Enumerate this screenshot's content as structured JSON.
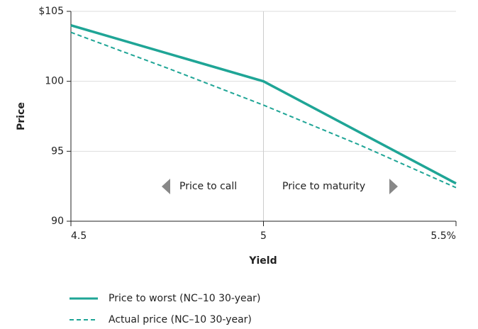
{
  "chart_data": {
    "type": "line",
    "x_label": "Yield",
    "y_label": "Price",
    "xlim": [
      4.5,
      5.5
    ],
    "xticks": [
      4.5,
      5,
      {
        "value": 5.5,
        "label": "5.5%"
      }
    ],
    "ylim": [
      90,
      105
    ],
    "yticks": [
      90,
      95,
      100,
      {
        "value": 105,
        "label": "$105"
      }
    ],
    "annotations": [
      "Price to call",
      "Price to maturity"
    ],
    "series": [
      {
        "name": "Price to worst (NC–10 30-year)",
        "color": "#1fa596",
        "dashed": false,
        "x": [
          4.5,
          5,
          5.5
        ],
        "values": [
          104,
          100,
          92.7
        ]
      },
      {
        "name": "Actual price (NC–10 30-year)",
        "color": "#1fa596",
        "dashed": true,
        "x": [
          4.5,
          4.75,
          5,
          5.25,
          5.5
        ],
        "values": [
          103.5,
          100.95,
          98.3,
          95.45,
          92.4
        ]
      }
    ]
  }
}
